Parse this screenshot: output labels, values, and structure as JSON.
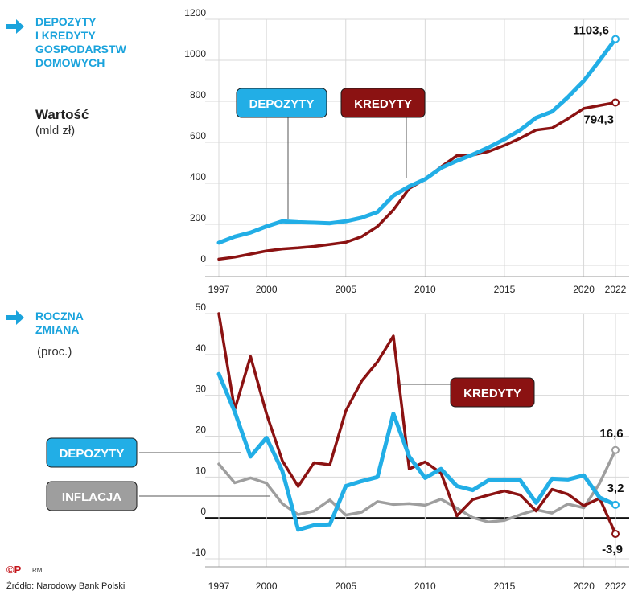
{
  "colors": {
    "depozyty": "#22aee6",
    "kredyty": "#8b1212",
    "inflacja": "#9e9e9e",
    "heading": "#1aa3dc",
    "grid": "#d8d8d8"
  },
  "top_panel": {
    "heading": "DEPOZYTY\nI KREDYTY\nGOSPODARSTW\nDOMOWYCH",
    "unit_title": "Wartość",
    "unit_sub": "(mld zł)"
  },
  "bottom_panel": {
    "heading": "ROCZNA\nZMIANA",
    "unit_sub": "(proc.)"
  },
  "footer": {
    "logo": "©P",
    "rm": "RM",
    "source": "Źródło: Narodowy Bank Polski"
  },
  "chart_data": [
    {
      "type": "line",
      "x": [
        1997,
        1998,
        1999,
        2000,
        2001,
        2002,
        2003,
        2004,
        2005,
        2006,
        2007,
        2008,
        2009,
        2010,
        2011,
        2012,
        2013,
        2014,
        2015,
        2016,
        2017,
        2018,
        2019,
        2020,
        2021,
        2022
      ],
      "series": [
        {
          "name": "DEPOZYTY",
          "values": [
            110,
            140,
            160,
            190,
            215,
            210,
            208,
            205,
            215,
            232,
            260,
            340,
            385,
            420,
            475,
            510,
            540,
            575,
            615,
            660,
            720,
            750,
            820,
            900,
            1000,
            1103.6
          ]
        },
        {
          "name": "KREDYTY",
          "values": [
            30,
            40,
            55,
            70,
            80,
            85,
            92,
            102,
            112,
            140,
            190,
            270,
            375,
            420,
            480,
            535,
            538,
            555,
            585,
            620,
            660,
            670,
            715,
            765,
            780,
            794.3
          ]
        }
      ],
      "end_labels": [
        "1103,6",
        "794,3"
      ],
      "ylim": [
        0,
        1200
      ],
      "yticks": [
        0,
        200,
        400,
        600,
        800,
        1000,
        1200
      ],
      "xtick_labels": [
        "1997",
        "2000",
        "2005",
        "2010",
        "2015",
        "2020",
        "2022"
      ],
      "grid": true
    },
    {
      "type": "line",
      "x": [
        1997,
        1998,
        1999,
        2000,
        2001,
        2002,
        2003,
        2004,
        2005,
        2006,
        2007,
        2008,
        2009,
        2010,
        2011,
        2012,
        2013,
        2014,
        2015,
        2016,
        2017,
        2018,
        2019,
        2020,
        2021,
        2022
      ],
      "series": [
        {
          "name": "DEPOZYTY",
          "values": [
            35.2,
            26,
            15,
            19.6,
            11.5,
            -2.9,
            -1.8,
            -1.6,
            7.8,
            9,
            10,
            25.5,
            15,
            9.8,
            12,
            7.8,
            6.8,
            9.2,
            9.4,
            9.2,
            3.7,
            9.6,
            9.4,
            10.4,
            5,
            3.2
          ]
        },
        {
          "name": "KREDYTY",
          "values": [
            50,
            26.5,
            39.5,
            25.5,
            14,
            7.7,
            13.5,
            13,
            26.2,
            33.5,
            38.2,
            44.5,
            12,
            13.7,
            11,
            0.5,
            4.5,
            5.6,
            6.6,
            5.6,
            1.7,
            7,
            5.8,
            3,
            4.8,
            -3.9
          ]
        },
        {
          "name": "INFLACJA",
          "values": [
            13.2,
            8.6,
            9.8,
            8.5,
            3.5,
            0.8,
            1.7,
            4.4,
            0.7,
            1.4,
            4,
            3.3,
            3.5,
            3.1,
            4.6,
            2.4,
            0.1,
            -1,
            -0.6,
            0.8,
            2,
            1.2,
            3.4,
            2.5,
            8.5,
            16.6
          ]
        }
      ],
      "end_labels": [
        "3,2",
        "-3,9",
        "16,6"
      ],
      "ylim": [
        -10,
        50
      ],
      "yticks": [
        -10,
        0,
        10,
        20,
        30,
        40,
        50
      ],
      "xtick_labels": [
        "1997",
        "2000",
        "2005",
        "2010",
        "2015",
        "2020",
        "2022"
      ],
      "grid": true,
      "zero_line": true
    }
  ]
}
